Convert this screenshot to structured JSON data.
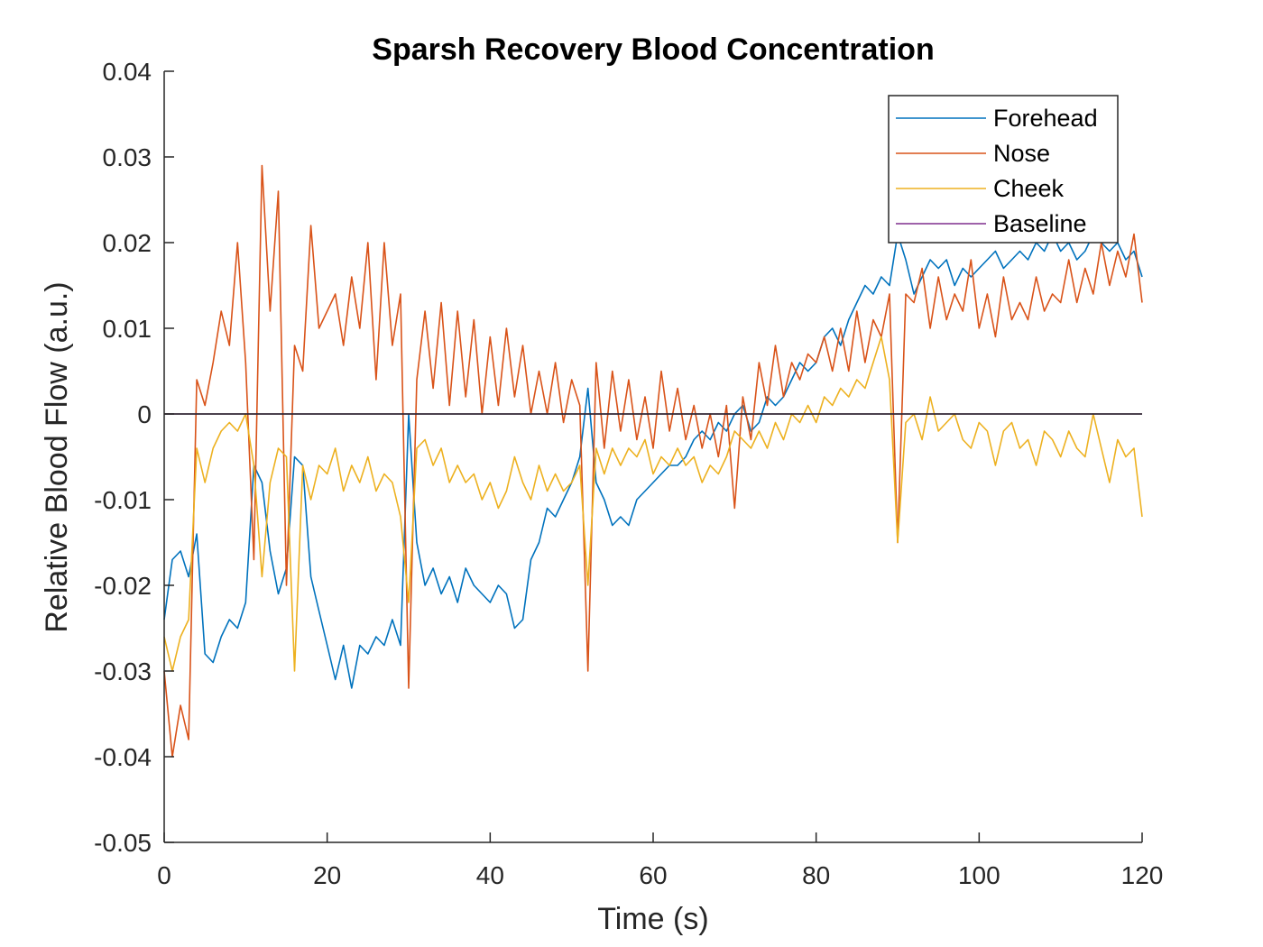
{
  "chart_data": {
    "type": "line",
    "title": "Sparsh Recovery Blood Concentration",
    "xlabel": "Time (s)",
    "ylabel": "Relative Blood Flow (a.u.)",
    "xlim": [
      0,
      120
    ],
    "ylim": [
      -0.05,
      0.04
    ],
    "xticks": [
      0,
      20,
      40,
      60,
      80,
      100,
      120
    ],
    "yticks": [
      0.04,
      0.03,
      0.02,
      0.01,
      0,
      -0.01,
      -0.02,
      -0.03,
      -0.04,
      -0.05
    ],
    "xtick_labels": [
      "0",
      "20",
      "40",
      "60",
      "80",
      "100",
      "120"
    ],
    "ytick_labels": [
      "0.04",
      "0.03",
      "0.02",
      "0.01",
      "0",
      "-0.01",
      "-0.02",
      "-0.03",
      "-0.04",
      "-0.05"
    ],
    "grid": false,
    "legend_position": "top-right",
    "series": [
      {
        "name": "Forehead",
        "color": "#0072BD",
        "x": [
          0,
          1,
          2,
          3,
          4,
          5,
          6,
          7,
          8,
          9,
          10,
          11,
          12,
          13,
          14,
          15,
          16,
          17,
          18,
          19,
          20,
          21,
          22,
          23,
          24,
          25,
          26,
          27,
          28,
          29,
          30,
          31,
          32,
          33,
          34,
          35,
          36,
          37,
          38,
          39,
          40,
          41,
          42,
          43,
          44,
          45,
          46,
          47,
          48,
          49,
          50,
          51,
          52,
          53,
          54,
          55,
          56,
          57,
          58,
          59,
          60,
          61,
          62,
          63,
          64,
          65,
          66,
          67,
          68,
          69,
          70,
          71,
          72,
          73,
          74,
          75,
          76,
          77,
          78,
          79,
          80,
          81,
          82,
          83,
          84,
          85,
          86,
          87,
          88,
          89,
          90,
          91,
          92,
          93,
          94,
          95,
          96,
          97,
          98,
          99,
          100,
          101,
          102,
          103,
          104,
          105,
          106,
          107,
          108,
          109,
          110,
          111,
          112,
          113,
          114,
          115,
          116,
          117,
          118,
          119,
          120
        ],
        "values": [
          -0.024,
          -0.017,
          -0.016,
          -0.019,
          -0.014,
          -0.028,
          -0.029,
          -0.026,
          -0.024,
          -0.025,
          -0.022,
          -0.006,
          -0.008,
          -0.016,
          -0.021,
          -0.018,
          -0.005,
          -0.006,
          -0.019,
          -0.023,
          -0.027,
          -0.031,
          -0.027,
          -0.032,
          -0.027,
          -0.028,
          -0.026,
          -0.027,
          -0.024,
          -0.027,
          0.0,
          -0.015,
          -0.02,
          -0.018,
          -0.021,
          -0.019,
          -0.022,
          -0.018,
          -0.02,
          -0.021,
          -0.022,
          -0.02,
          -0.021,
          -0.025,
          -0.024,
          -0.017,
          -0.015,
          -0.011,
          -0.012,
          -0.01,
          -0.008,
          -0.005,
          0.003,
          -0.008,
          -0.01,
          -0.013,
          -0.012,
          -0.013,
          -0.01,
          -0.009,
          -0.008,
          -0.007,
          -0.006,
          -0.006,
          -0.005,
          -0.003,
          -0.002,
          -0.003,
          -0.001,
          -0.002,
          0.0,
          0.001,
          -0.002,
          -0.001,
          0.002,
          0.001,
          0.002,
          0.004,
          0.006,
          0.005,
          0.006,
          0.009,
          0.01,
          0.008,
          0.011,
          0.013,
          0.015,
          0.014,
          0.016,
          0.015,
          0.021,
          0.018,
          0.014,
          0.016,
          0.018,
          0.017,
          0.018,
          0.015,
          0.017,
          0.016,
          0.017,
          0.018,
          0.019,
          0.017,
          0.018,
          0.019,
          0.018,
          0.02,
          0.019,
          0.021,
          0.019,
          0.02,
          0.018,
          0.019,
          0.021,
          0.02,
          0.019,
          0.02,
          0.018,
          0.019,
          0.016
        ]
      },
      {
        "name": "Nose",
        "color": "#D95319",
        "x": [
          0,
          1,
          2,
          3,
          4,
          5,
          6,
          7,
          8,
          9,
          10,
          11,
          12,
          13,
          14,
          15,
          16,
          17,
          18,
          19,
          20,
          21,
          22,
          23,
          24,
          25,
          26,
          27,
          28,
          29,
          30,
          31,
          32,
          33,
          34,
          35,
          36,
          37,
          38,
          39,
          40,
          41,
          42,
          43,
          44,
          45,
          46,
          47,
          48,
          49,
          50,
          51,
          52,
          53,
          54,
          55,
          56,
          57,
          58,
          59,
          60,
          61,
          62,
          63,
          64,
          65,
          66,
          67,
          68,
          69,
          70,
          71,
          72,
          73,
          74,
          75,
          76,
          77,
          78,
          79,
          80,
          81,
          82,
          83,
          84,
          85,
          86,
          87,
          88,
          89,
          90,
          91,
          92,
          93,
          94,
          95,
          96,
          97,
          98,
          99,
          100,
          101,
          102,
          103,
          104,
          105,
          106,
          107,
          108,
          109,
          110,
          111,
          112,
          113,
          114,
          115,
          116,
          117,
          118,
          119,
          120
        ],
        "values": [
          -0.03,
          -0.04,
          -0.034,
          -0.038,
          0.004,
          0.001,
          0.006,
          0.012,
          0.008,
          0.02,
          0.006,
          -0.017,
          0.029,
          0.012,
          0.026,
          -0.02,
          0.008,
          0.005,
          0.022,
          0.01,
          0.012,
          0.014,
          0.008,
          0.016,
          0.01,
          0.02,
          0.004,
          0.02,
          0.008,
          0.014,
          -0.032,
          0.004,
          0.012,
          0.003,
          0.013,
          0.001,
          0.012,
          0.002,
          0.011,
          0.0,
          0.009,
          0.001,
          0.01,
          0.002,
          0.008,
          0.0,
          0.005,
          0.0,
          0.006,
          -0.001,
          0.004,
          0.001,
          -0.03,
          0.006,
          -0.004,
          0.005,
          -0.002,
          0.004,
          -0.003,
          0.002,
          -0.004,
          0.005,
          -0.002,
          0.003,
          -0.003,
          0.001,
          -0.004,
          0.0,
          -0.005,
          0.001,
          -0.011,
          0.002,
          -0.003,
          0.006,
          0.001,
          0.008,
          0.002,
          0.006,
          0.004,
          0.007,
          0.006,
          0.009,
          0.005,
          0.01,
          0.005,
          0.012,
          0.006,
          0.011,
          0.009,
          0.014,
          -0.015,
          0.014,
          0.013,
          0.017,
          0.01,
          0.016,
          0.011,
          0.014,
          0.012,
          0.018,
          0.01,
          0.014,
          0.009,
          0.016,
          0.011,
          0.013,
          0.011,
          0.016,
          0.012,
          0.014,
          0.013,
          0.018,
          0.013,
          0.017,
          0.014,
          0.02,
          0.015,
          0.019,
          0.016,
          0.021,
          0.013
        ]
      },
      {
        "name": "Cheek",
        "color": "#EDB120",
        "x": [
          0,
          1,
          2,
          3,
          4,
          5,
          6,
          7,
          8,
          9,
          10,
          11,
          12,
          13,
          14,
          15,
          16,
          17,
          18,
          19,
          20,
          21,
          22,
          23,
          24,
          25,
          26,
          27,
          28,
          29,
          30,
          31,
          32,
          33,
          34,
          35,
          36,
          37,
          38,
          39,
          40,
          41,
          42,
          43,
          44,
          45,
          46,
          47,
          48,
          49,
          50,
          51,
          52,
          53,
          54,
          55,
          56,
          57,
          58,
          59,
          60,
          61,
          62,
          63,
          64,
          65,
          66,
          67,
          68,
          69,
          70,
          71,
          72,
          73,
          74,
          75,
          76,
          77,
          78,
          79,
          80,
          81,
          82,
          83,
          84,
          85,
          86,
          87,
          88,
          89,
          90,
          91,
          92,
          93,
          94,
          95,
          96,
          97,
          98,
          99,
          100,
          101,
          102,
          103,
          104,
          105,
          106,
          107,
          108,
          109,
          110,
          111,
          112,
          113,
          114,
          115,
          116,
          117,
          118,
          119,
          120
        ],
        "values": [
          -0.026,
          -0.03,
          -0.026,
          -0.024,
          -0.004,
          -0.008,
          -0.004,
          -0.002,
          -0.001,
          -0.002,
          0.0,
          -0.006,
          -0.019,
          -0.008,
          -0.004,
          -0.005,
          -0.03,
          -0.006,
          -0.01,
          -0.006,
          -0.007,
          -0.004,
          -0.009,
          -0.006,
          -0.008,
          -0.005,
          -0.009,
          -0.007,
          -0.008,
          -0.012,
          -0.022,
          -0.004,
          -0.003,
          -0.006,
          -0.004,
          -0.008,
          -0.006,
          -0.008,
          -0.007,
          -0.01,
          -0.008,
          -0.011,
          -0.009,
          -0.005,
          -0.008,
          -0.01,
          -0.006,
          -0.009,
          -0.007,
          -0.009,
          -0.008,
          -0.006,
          -0.02,
          -0.004,
          -0.007,
          -0.004,
          -0.006,
          -0.004,
          -0.005,
          -0.003,
          -0.007,
          -0.005,
          -0.006,
          -0.004,
          -0.006,
          -0.005,
          -0.008,
          -0.006,
          -0.007,
          -0.005,
          -0.002,
          -0.003,
          -0.004,
          -0.002,
          -0.004,
          -0.001,
          -0.003,
          0.0,
          -0.001,
          0.001,
          -0.001,
          0.002,
          0.001,
          0.003,
          0.002,
          0.004,
          0.003,
          0.006,
          0.009,
          0.004,
          -0.015,
          -0.001,
          0.0,
          -0.003,
          0.002,
          -0.002,
          -0.001,
          0.0,
          -0.003,
          -0.004,
          -0.001,
          -0.002,
          -0.006,
          -0.002,
          -0.001,
          -0.004,
          -0.003,
          -0.006,
          -0.002,
          -0.003,
          -0.005,
          -0.002,
          -0.004,
          -0.005,
          0.0,
          -0.004,
          -0.008,
          -0.003,
          -0.005,
          -0.004,
          -0.012
        ]
      },
      {
        "name": "Baseline",
        "color": "#7E2F8E",
        "x": [
          0,
          120
        ],
        "values": [
          0,
          0
        ]
      }
    ]
  }
}
